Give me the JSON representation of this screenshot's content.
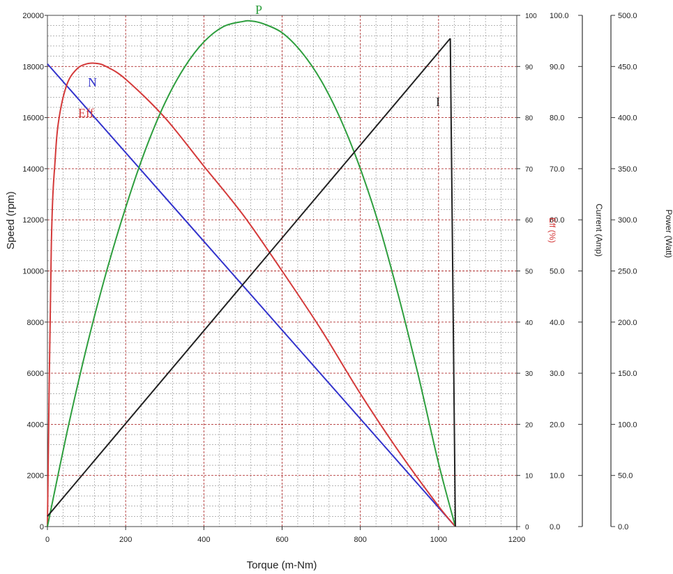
{
  "chart_data": {
    "type": "line",
    "xlabel": "Torque (m-Nm)",
    "x_ticks": [
      "0",
      "200",
      "400",
      "600",
      "800",
      "1000",
      "1200"
    ],
    "xlim": [
      0,
      1200
    ],
    "axes": {
      "speed": {
        "label": "Speed (rpm)",
        "range": [
          0,
          20000
        ],
        "ticks": [
          "0",
          "2000",
          "4000",
          "6000",
          "8000",
          "10000",
          "12000",
          "14000",
          "16000",
          "18000",
          "20000"
        ]
      },
      "eff": {
        "label": "Eff (%)",
        "range": [
          0,
          100
        ],
        "ticks": [
          "0",
          "10",
          "20",
          "30",
          "40",
          "50",
          "60",
          "70",
          "80",
          "90",
          "100"
        ]
      },
      "current": {
        "label": "Current (Amp)",
        "range": [
          0,
          100
        ],
        "ticks": [
          "0.0",
          "10.0",
          "20.0",
          "30.0",
          "40.0",
          "50.0",
          "60.0",
          "70.0",
          "80.0",
          "90.0",
          "100.0"
        ]
      },
      "power": {
        "label": "Power (Watt)",
        "range": [
          0,
          500
        ],
        "ticks": [
          "0.0",
          "50.0",
          "100.0",
          "150.0",
          "200.0",
          "250.0",
          "300.0",
          "350.0",
          "400.0",
          "450.0",
          "500.0"
        ]
      }
    },
    "grid": true,
    "series": [
      {
        "name": "N",
        "axis": "speed",
        "color": "#3333cc",
        "points": [
          [
            0,
            18100
          ],
          [
            1043,
            0
          ]
        ]
      },
      {
        "name": "Eff",
        "axis": "eff",
        "color": "#d43a3a",
        "points": [
          [
            0,
            0
          ],
          [
            10,
            55
          ],
          [
            20,
            72
          ],
          [
            30,
            80
          ],
          [
            50,
            86.5
          ],
          [
            75,
            89.5
          ],
          [
            100,
            90.5
          ],
          [
            125,
            90.6
          ],
          [
            150,
            90
          ],
          [
            200,
            87.5
          ],
          [
            300,
            80
          ],
          [
            400,
            70.5
          ],
          [
            500,
            61
          ],
          [
            600,
            50
          ],
          [
            700,
            38.5
          ],
          [
            800,
            26
          ],
          [
            900,
            14.5
          ],
          [
            1000,
            4
          ],
          [
            1043,
            0
          ]
        ]
      },
      {
        "name": "P",
        "axis": "power",
        "color": "#2e9e3e",
        "points": [
          [
            0,
            0
          ],
          [
            50,
            92
          ],
          [
            100,
            175
          ],
          [
            150,
            248
          ],
          [
            200,
            312
          ],
          [
            250,
            368
          ],
          [
            300,
            414
          ],
          [
            350,
            449
          ],
          [
            400,
            474
          ],
          [
            450,
            489
          ],
          [
            500,
            494
          ],
          [
            521,
            494.5
          ],
          [
            550,
            492
          ],
          [
            600,
            483
          ],
          [
            650,
            464
          ],
          [
            700,
            436
          ],
          [
            750,
            398
          ],
          [
            800,
            350
          ],
          [
            850,
            292
          ],
          [
            900,
            222
          ],
          [
            950,
            145
          ],
          [
            1000,
            62
          ],
          [
            1043,
            0
          ]
        ]
      },
      {
        "name": "I",
        "axis": "current",
        "color": "#222222",
        "points": [
          [
            0,
            2
          ],
          [
            1030,
            95.5
          ]
        ]
      }
    ],
    "drop_line": {
      "color": "#222222",
      "points": [
        [
          1030,
          95.5
        ],
        [
          1043,
          0
        ]
      ]
    }
  }
}
